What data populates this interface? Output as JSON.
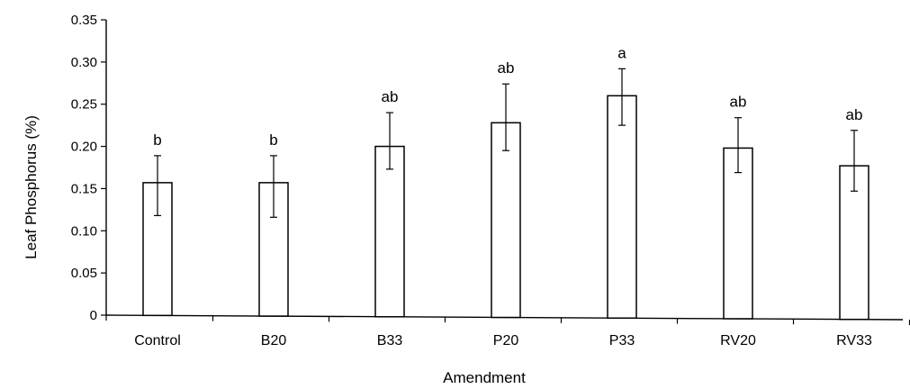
{
  "chart_data": {
    "type": "bar",
    "categories": [
      "Control",
      "B20",
      "B33",
      "P20",
      "P33",
      "RV20",
      "RV33"
    ],
    "values": [
      0.157,
      0.157,
      0.2,
      0.228,
      0.26,
      0.198,
      0.177
    ],
    "error_upper": [
      0.189,
      0.189,
      0.24,
      0.274,
      0.292,
      0.234,
      0.219
    ],
    "error_lower": [
      0.118,
      0.116,
      0.173,
      0.195,
      0.225,
      0.169,
      0.147
    ],
    "significance_letters": [
      "b",
      "b",
      "ab",
      "ab",
      "a",
      "ab",
      "ab"
    ],
    "xlabel": "Amendment",
    "ylabel": "Leaf Phosphorus (%)",
    "ylim": [
      0,
      0.35
    ],
    "y_ticks": [
      "0",
      "0.05",
      "0.10",
      "0.15",
      "0.20",
      "0.25",
      "0.30",
      "0.35"
    ],
    "y_tick_values": [
      0,
      0.05,
      0.1,
      0.15,
      0.2,
      0.25,
      0.3,
      0.35
    ],
    "grid": false,
    "legend": "none",
    "colors": {
      "bar_fill": "#ffffff",
      "stroke": "#000000"
    }
  }
}
